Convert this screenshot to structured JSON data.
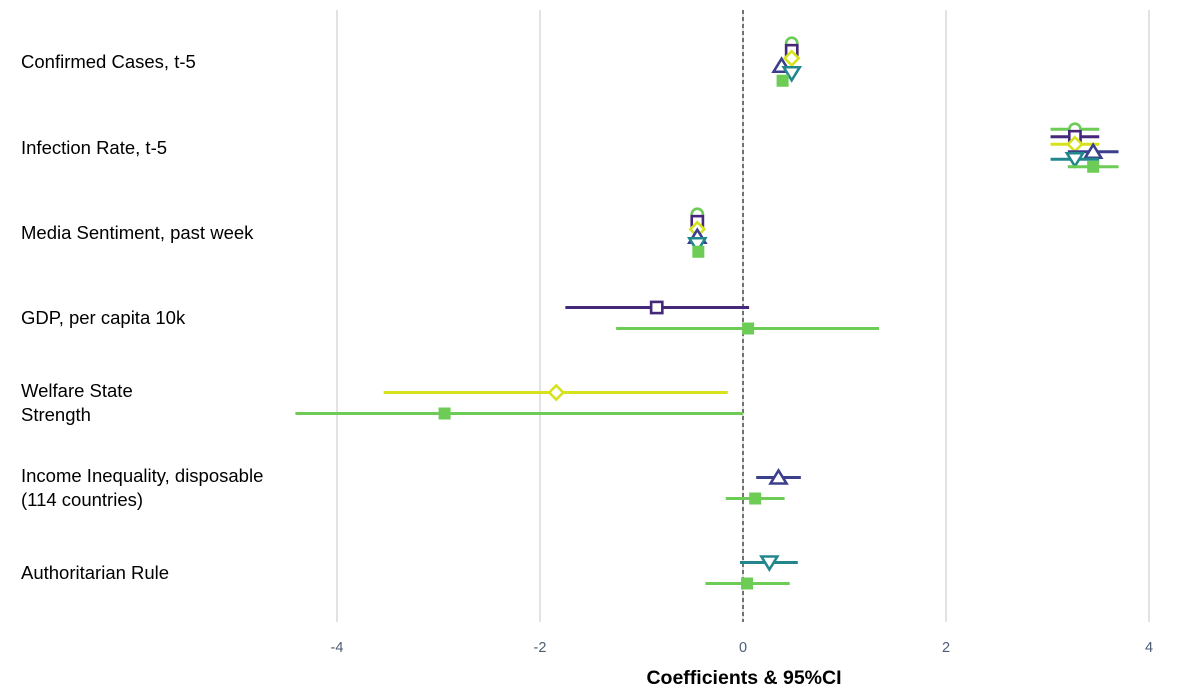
{
  "chart_data": {
    "type": "coefficient-plot",
    "xlabel": "Coefficients & 95%CI",
    "xlim": [
      -5,
      4
    ],
    "xticks": [
      -4,
      -2,
      0,
      2,
      4
    ],
    "tick_labels": [
      "-4",
      "-2",
      "0",
      "2",
      "4"
    ],
    "reference_line": 0,
    "grid": true,
    "legend": "none",
    "colors": {
      "purple": "#46287a",
      "indigo": "#3b3f8c",
      "teal": "#21878d",
      "yellow": "#d6e21b",
      "green": "#6ccc55"
    },
    "variables": [
      {
        "label": [
          "Confirmed Cases, t-5"
        ],
        "estimates": [
          {
            "marker": "circle",
            "color": "green",
            "value": 0.48,
            "lo": 0.45,
            "hi": 0.51
          },
          {
            "marker": "square",
            "color": "purple",
            "value": 0.48,
            "lo": 0.45,
            "hi": 0.51
          },
          {
            "marker": "diamond",
            "color": "yellow",
            "value": 0.48,
            "lo": 0.45,
            "hi": 0.51
          },
          {
            "marker": "triangle-up",
            "color": "indigo",
            "value": 0.38,
            "lo": 0.35,
            "hi": 0.41
          },
          {
            "marker": "triangle-down",
            "color": "teal",
            "value": 0.48,
            "lo": 0.45,
            "hi": 0.52
          },
          {
            "marker": "square-filled",
            "color": "green",
            "value": 0.39,
            "lo": 0.36,
            "hi": 0.42
          }
        ]
      },
      {
        "label": [
          "Infection Rate, t-5"
        ],
        "estimates": [
          {
            "marker": "circle",
            "color": "green",
            "value": 3.27,
            "lo": 3.03,
            "hi": 3.51
          },
          {
            "marker": "square",
            "color": "purple",
            "value": 3.27,
            "lo": 3.03,
            "hi": 3.51
          },
          {
            "marker": "diamond",
            "color": "yellow",
            "value": 3.27,
            "lo": 3.03,
            "hi": 3.51
          },
          {
            "marker": "triangle-up",
            "color": "indigo",
            "value": 3.45,
            "lo": 3.2,
            "hi": 3.7
          },
          {
            "marker": "triangle-down",
            "color": "teal",
            "value": 3.27,
            "lo": 3.03,
            "hi": 3.51
          },
          {
            "marker": "square-filled",
            "color": "green",
            "value": 3.45,
            "lo": 3.2,
            "hi": 3.7
          }
        ]
      },
      {
        "label": [
          "Media Sentiment, past week"
        ],
        "estimates": [
          {
            "marker": "circle",
            "color": "green",
            "value": -0.45,
            "lo": -0.48,
            "hi": -0.42
          },
          {
            "marker": "square",
            "color": "purple",
            "value": -0.45,
            "lo": -0.48,
            "hi": -0.42
          },
          {
            "marker": "diamond",
            "color": "yellow",
            "value": -0.45,
            "lo": -0.48,
            "hi": -0.42
          },
          {
            "marker": "triangle-up",
            "color": "indigo",
            "value": -0.45,
            "lo": -0.48,
            "hi": -0.42
          },
          {
            "marker": "triangle-down",
            "color": "teal",
            "value": -0.45,
            "lo": -0.48,
            "hi": -0.42
          },
          {
            "marker": "square-filled",
            "color": "green",
            "value": -0.44,
            "lo": -0.47,
            "hi": -0.41
          }
        ]
      },
      {
        "label": [
          "GDP, per capita 10k"
        ],
        "estimates": [
          {
            "marker": "square",
            "color": "purple",
            "value": -0.85,
            "lo": -1.75,
            "hi": 0.06
          },
          {
            "marker": "square-filled",
            "color": "green",
            "value": 0.05,
            "lo": -1.25,
            "hi": 1.34
          }
        ]
      },
      {
        "label": [
          "Welfare State",
          "Strength"
        ],
        "estimates": [
          {
            "marker": "diamond",
            "color": "yellow",
            "value": -1.84,
            "lo": -3.54,
            "hi": -0.15
          },
          {
            "marker": "square-filled",
            "color": "green",
            "value": -2.94,
            "lo": -4.41,
            "hi": 0.0
          }
        ]
      },
      {
        "label": [
          "Income Inequality, disposable",
          "(114 countries)"
        ],
        "estimates": [
          {
            "marker": "triangle-up",
            "color": "indigo",
            "value": 0.35,
            "lo": 0.13,
            "hi": 0.57
          },
          {
            "marker": "square-filled",
            "color": "green",
            "value": 0.12,
            "lo": -0.17,
            "hi": 0.41
          }
        ]
      },
      {
        "label": [
          "Authoritarian Rule"
        ],
        "estimates": [
          {
            "marker": "triangle-down",
            "color": "teal",
            "value": 0.26,
            "lo": -0.03,
            "hi": 0.54
          },
          {
            "marker": "square-filled",
            "color": "green",
            "value": 0.04,
            "lo": -0.37,
            "hi": 0.46
          }
        ]
      }
    ]
  }
}
